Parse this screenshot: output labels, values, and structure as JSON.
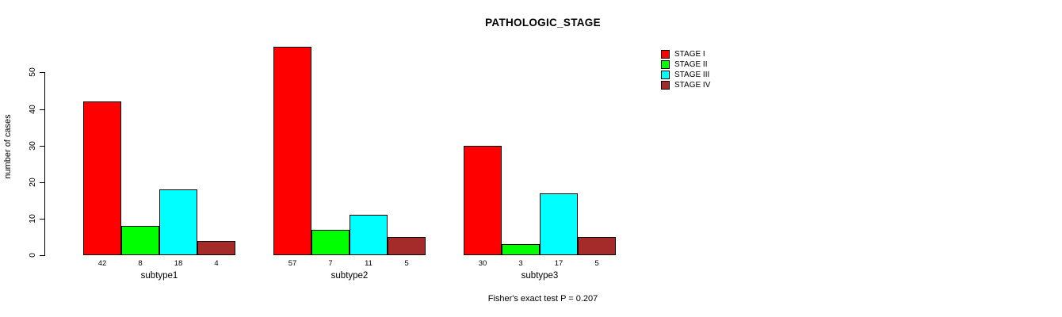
{
  "chart_data": {
    "type": "bar",
    "title": "PATHOLOGIC_STAGE",
    "ylabel": "number of cases",
    "xlabel": "",
    "categories": [
      "subtype1",
      "subtype2",
      "subtype3"
    ],
    "series": [
      {
        "name": "STAGE I",
        "color": "#FF0000",
        "values": [
          42,
          57,
          30
        ]
      },
      {
        "name": "STAGE II",
        "color": "#00FF00",
        "values": [
          8,
          7,
          3
        ]
      },
      {
        "name": "STAGE III",
        "color": "#00FFFF",
        "values": [
          18,
          11,
          17
        ]
      },
      {
        "name": "STAGE IV",
        "color": "#A52A2A",
        "values": [
          4,
          5,
          5
        ]
      }
    ],
    "yticks": [
      0,
      10,
      20,
      30,
      40,
      50
    ],
    "ylim": [
      0,
      57
    ],
    "grid": false,
    "bar_value_labels_shown": true,
    "legend_position": "top-right",
    "legend_entries": [
      "STAGE I",
      "STAGE II",
      "STAGE III",
      "STAGE IV"
    ],
    "annotation": "Fisher's exact test P = 0.207"
  }
}
